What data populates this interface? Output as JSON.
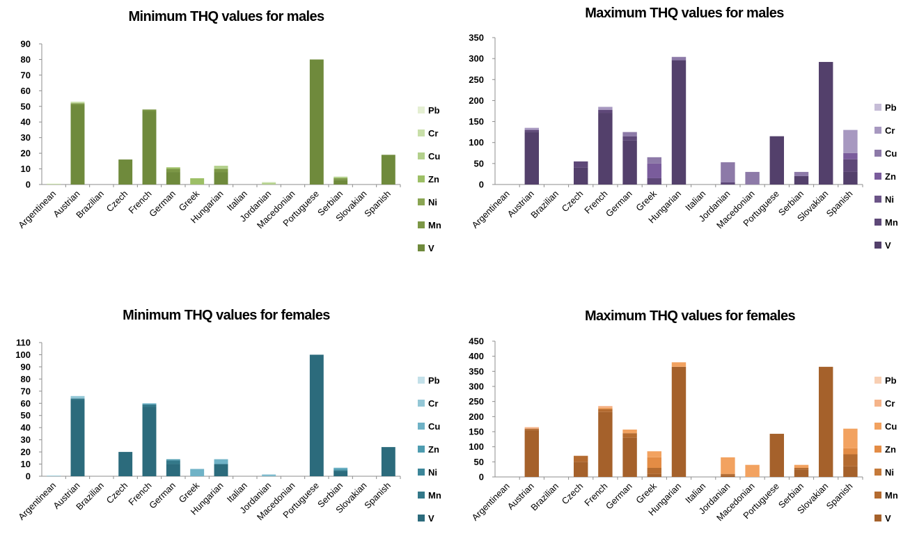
{
  "chart_data": [
    {
      "type": "bar",
      "stacked": true,
      "title": "Minimum THQ values for males",
      "categories": [
        "Argentinean",
        "Austrian",
        "Brazilian",
        "Czech",
        "French",
        "German",
        "Greek",
        "Hungarian",
        "Italian",
        "Jordanian",
        "Macedonian",
        "Portuguese",
        "Serbian",
        "Slovakian",
        "Spanish"
      ],
      "ylim": [
        0,
        90
      ],
      "yticks": [
        0,
        10,
        20,
        30,
        40,
        50,
        60,
        70,
        80,
        90
      ],
      "grid": false,
      "legend_position": "right",
      "series": [
        {
          "name": "V",
          "color": "#6f8a3c",
          "values": [
            0,
            51,
            0,
            16,
            47,
            8,
            0,
            8,
            0,
            0,
            0,
            80,
            3,
            0,
            19
          ]
        },
        {
          "name": "Mn",
          "color": "#7c9746",
          "values": [
            0,
            1,
            0,
            0,
            1,
            2,
            0,
            2,
            0,
            0,
            0,
            0,
            1,
            0,
            0
          ]
        },
        {
          "name": "Ni",
          "color": "#8aa553",
          "values": [
            0,
            0,
            0,
            0,
            0,
            0,
            0,
            0,
            0,
            0,
            0,
            0,
            0,
            0,
            0
          ]
        },
        {
          "name": "Zn",
          "color": "#9dbf66",
          "values": [
            0,
            0,
            0,
            0,
            0,
            1,
            4,
            0,
            0,
            0,
            0,
            0,
            0,
            0,
            0
          ]
        },
        {
          "name": "Cu",
          "color": "#b3d08c",
          "values": [
            0,
            0,
            0,
            0,
            0,
            0,
            0,
            2,
            0,
            1,
            0,
            0,
            1,
            0,
            0
          ]
        },
        {
          "name": "Cr",
          "color": "#c8dfa8",
          "values": [
            0.5,
            1,
            0,
            0,
            0,
            0,
            0,
            0,
            0,
            0.5,
            0,
            0,
            0,
            0,
            0
          ]
        },
        {
          "name": "Pb",
          "color": "#e4efd2",
          "values": [
            0,
            0,
            0,
            0,
            0,
            0,
            0,
            0,
            0,
            0,
            0,
            0,
            0,
            0,
            0
          ]
        }
      ]
    },
    {
      "type": "bar",
      "stacked": true,
      "title": "Maximum THQ values for males",
      "categories": [
        "Argentinean",
        "Austrian",
        "Brazilian",
        "Czech",
        "French",
        "German",
        "Greek",
        "Hungarian",
        "Italian",
        "Jordanian",
        "Macedonian",
        "Portuguese",
        "Serbian",
        "Slovakian",
        "Spanish"
      ],
      "ylim": [
        0,
        350
      ],
      "yticks": [
        0,
        50,
        100,
        150,
        200,
        250,
        300,
        350
      ],
      "grid": false,
      "legend_position": "right",
      "series": [
        {
          "name": "V",
          "color": "#53406b",
          "values": [
            0,
            125,
            0,
            40,
            170,
            105,
            0,
            296,
            0,
            0,
            0,
            115,
            20,
            292,
            30
          ]
        },
        {
          "name": "Mn",
          "color": "#5e4878",
          "values": [
            0,
            5,
            0,
            15,
            8,
            10,
            15,
            0,
            0,
            5,
            0,
            0,
            0,
            0,
            30
          ]
        },
        {
          "name": "Ni",
          "color": "#6b5487",
          "values": [
            0,
            0,
            0,
            0,
            0,
            0,
            0,
            0,
            0,
            0,
            0,
            0,
            0,
            0,
            0
          ]
        },
        {
          "name": "Zn",
          "color": "#7a5c9c",
          "values": [
            0,
            0,
            0,
            0,
            0,
            0,
            35,
            0,
            0,
            0,
            0,
            0,
            0,
            0,
            15
          ]
        },
        {
          "name": "Cu",
          "color": "#8d7aa8",
          "values": [
            0,
            0,
            0,
            0,
            0,
            10,
            15,
            8,
            0,
            48,
            30,
            0,
            10,
            0,
            0
          ]
        },
        {
          "name": "Cr",
          "color": "#a798c0",
          "values": [
            0,
            5,
            0,
            0,
            7,
            0,
            0,
            0,
            0,
            0,
            0,
            0,
            0,
            0,
            55
          ]
        },
        {
          "name": "Pb",
          "color": "#c6bdd7",
          "values": [
            0,
            0,
            0,
            0,
            0,
            0,
            0,
            0,
            0,
            0,
            0,
            0,
            0,
            0,
            0
          ]
        }
      ]
    },
    {
      "type": "bar",
      "stacked": true,
      "title": "Minimum THQ values for females",
      "categories": [
        "Argentinean",
        "Austrian",
        "Brazilian",
        "Czech",
        "French",
        "German",
        "Greek",
        "Hungarian",
        "Italian",
        "Jordanian",
        "Macedonian",
        "Portuguese",
        "Serbian",
        "Slovakian",
        "Spanish"
      ],
      "ylim": [
        0,
        110
      ],
      "yticks": [
        0,
        10,
        20,
        30,
        40,
        50,
        60,
        70,
        80,
        90,
        100,
        110
      ],
      "grid": false,
      "legend_position": "right",
      "series": [
        {
          "name": "V",
          "color": "#2c6b7c",
          "values": [
            0,
            63,
            0,
            20,
            57,
            10,
            0,
            10,
            0,
            0,
            0,
            100,
            4,
            0,
            24
          ]
        },
        {
          "name": "Mn",
          "color": "#337889",
          "values": [
            0,
            1,
            0,
            0,
            2,
            3,
            0,
            0,
            0,
            0,
            0,
            0,
            1,
            0,
            0
          ]
        },
        {
          "name": "Ni",
          "color": "#3c8699",
          "values": [
            0,
            0,
            0,
            0,
            0,
            0,
            0,
            0,
            0,
            0,
            0,
            0,
            0,
            0,
            0
          ]
        },
        {
          "name": "Zn",
          "color": "#4e9cb0",
          "values": [
            0,
            0,
            0,
            0,
            0,
            1,
            0,
            0,
            0,
            0,
            0,
            0,
            1,
            0,
            0
          ]
        },
        {
          "name": "Cu",
          "color": "#6fb2c6",
          "values": [
            0,
            0,
            0,
            0,
            1,
            0,
            6,
            4,
            0,
            1,
            0,
            0,
            1,
            0,
            0
          ]
        },
        {
          "name": "Cr",
          "color": "#93c7d6",
          "values": [
            0.5,
            2,
            0,
            0,
            0,
            0,
            0,
            0,
            0,
            0.5,
            0,
            0,
            0,
            0,
            0
          ]
        },
        {
          "name": "Pb",
          "color": "#c3e0e9",
          "values": [
            0,
            0,
            0,
            0,
            0,
            0,
            0,
            0,
            0,
            0,
            0,
            0,
            0,
            0,
            0
          ]
        }
      ]
    },
    {
      "type": "bar",
      "stacked": true,
      "title": "Maximum THQ values for females",
      "categories": [
        "Argentinean",
        "Austrian",
        "Brazilian",
        "Czech",
        "French",
        "German",
        "Greek",
        "Hungarian",
        "Italian",
        "Jordanian",
        "Macedonian",
        "Portuguese",
        "Serbian",
        "Slovakian",
        "Spanish"
      ],
      "ylim": [
        0,
        450
      ],
      "yticks": [
        0,
        50,
        100,
        150,
        200,
        250,
        300,
        350,
        400,
        450
      ],
      "grid": false,
      "legend_position": "right",
      "series": [
        {
          "name": "V",
          "color": "#a5612b",
          "values": [
            0,
            155,
            0,
            50,
            215,
            130,
            10,
            365,
            0,
            5,
            0,
            143,
            25,
            365,
            35
          ]
        },
        {
          "name": "Mn",
          "color": "#b46b30",
          "values": [
            0,
            5,
            0,
            20,
            10,
            15,
            20,
            0,
            0,
            5,
            0,
            0,
            5,
            0,
            40
          ]
        },
        {
          "name": "Ni",
          "color": "#c57a3a",
          "values": [
            0,
            0,
            0,
            0,
            0,
            0,
            0,
            0,
            0,
            0,
            0,
            0,
            0,
            0,
            0
          ]
        },
        {
          "name": "Zn",
          "color": "#e38c45",
          "values": [
            0,
            0,
            0,
            0,
            0,
            0,
            35,
            0,
            0,
            0,
            0,
            0,
            0,
            0,
            20
          ]
        },
        {
          "name": "Cu",
          "color": "#f2a260",
          "values": [
            0,
            0,
            0,
            0,
            5,
            12,
            20,
            15,
            0,
            55,
            40,
            0,
            10,
            0,
            65
          ]
        },
        {
          "name": "Cr",
          "color": "#f5b48a",
          "values": [
            0,
            5,
            0,
            0,
            5,
            0,
            0,
            0,
            0,
            0,
            0,
            0,
            0,
            0,
            0
          ]
        },
        {
          "name": "Pb",
          "color": "#f8cfb3",
          "values": [
            0,
            0,
            0,
            0,
            0,
            0,
            0,
            0,
            0,
            0,
            0,
            0,
            0,
            0,
            0
          ]
        }
      ]
    }
  ]
}
